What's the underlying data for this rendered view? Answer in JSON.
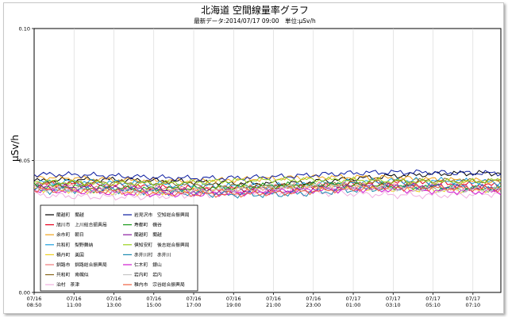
{
  "chart_data": {
    "type": "line",
    "title": "北海道 空間線量率グラフ",
    "subtitle_text": "最新データ:2014/07/17 09:00　単位:μSv/h",
    "ylabel": "μSv/h",
    "ylim": [
      0.0,
      0.1
    ],
    "yticks": [
      "0.00",
      "0.05",
      "0.10"
    ],
    "x_tick_labels": [
      {
        "date": "07/16",
        "time": "08:50"
      },
      {
        "date": "07/16",
        "time": "11:00"
      },
      {
        "date": "07/16",
        "time": "13:00"
      },
      {
        "date": "07/16",
        "time": "15:00"
      },
      {
        "date": "07/16",
        "time": "17:00"
      },
      {
        "date": "07/16",
        "time": "19:00"
      },
      {
        "date": "07/16",
        "time": "21:00"
      },
      {
        "date": "07/16",
        "time": "23:00"
      },
      {
        "date": "07/17",
        "time": "01:00"
      },
      {
        "date": "07/17",
        "time": "03:10"
      },
      {
        "date": "07/17",
        "time": "05:10"
      },
      {
        "date": "07/17",
        "time": "07:10"
      }
    ],
    "grid": "vertical",
    "legend_position": "bottom-left",
    "series": [
      {
        "name": "蘭越町　蘭越",
        "color": "#000000",
        "base": 0.042,
        "amp": 0.0012,
        "trend": 0.0035,
        "phase": 0.3
      },
      {
        "name": "旭川市　上川総合振興局",
        "color": "#e8001c",
        "base": 0.04,
        "amp": 0.0015,
        "trend": 0.001,
        "phase": 1.1
      },
      {
        "name": "余市町　朝日",
        "color": "#f2a31a",
        "base": 0.043,
        "amp": 0.0012,
        "trend": 0.0,
        "phase": 2.0
      },
      {
        "name": "共和町　梨野舞納",
        "color": "#1aa0e0",
        "base": 0.041,
        "amp": 0.0014,
        "trend": 0.001,
        "phase": 0.7
      },
      {
        "name": "積丹町　美国",
        "color": "#f0d020",
        "base": 0.039,
        "amp": 0.0015,
        "trend": 0.001,
        "phase": 2.6
      },
      {
        "name": "釧路市　釧路総合振興局",
        "color": "#f07a7a",
        "base": 0.04,
        "amp": 0.0013,
        "trend": 0.0,
        "phase": 1.6
      },
      {
        "name": "共和町　南幌似",
        "color": "#8a6a20",
        "base": 0.041,
        "amp": 0.0012,
        "trend": 0.001,
        "phase": 0.2
      },
      {
        "name": "泊村　茶津",
        "color": "#f0b0e0",
        "base": 0.037,
        "amp": 0.0014,
        "trend": 0.001,
        "phase": 3.1
      },
      {
        "name": "岩見沢市　空知総合振興局",
        "color": "#0a1aa0",
        "base": 0.044,
        "amp": 0.0012,
        "trend": 0.002,
        "phase": 1.4
      },
      {
        "name": "寿都町　磯谷",
        "color": "#1a9a1a",
        "base": 0.04,
        "amp": 0.0013,
        "trend": 0.0,
        "phase": 2.3
      },
      {
        "name": "蘭越町　蘭越",
        "color": "#8a1aa0",
        "base": 0.039,
        "amp": 0.0014,
        "trend": 0.001,
        "phase": 0.9
      },
      {
        "name": "倶知安町　後志総合振興局",
        "color": "#9ad01a",
        "base": 0.042,
        "amp": 0.0012,
        "trend": 0.001,
        "phase": 2.9
      },
      {
        "name": "赤井川村　赤井川",
        "color": "#1a8ab0",
        "base": 0.038,
        "amp": 0.0015,
        "trend": 0.002,
        "phase": 0.5
      },
      {
        "name": "仁木町　銀山",
        "color": "#d01ad0",
        "base": 0.038,
        "amp": 0.0013,
        "trend": 0.001,
        "phase": 1.9
      },
      {
        "name": "岩内町　岩内",
        "color": "#c8c8c8",
        "base": 0.039,
        "amp": 0.0014,
        "trend": 0.001,
        "phase": 2.5
      },
      {
        "name": "稚内市　宗谷総合振興局",
        "color": "#f06040",
        "base": 0.038,
        "amp": 0.0013,
        "trend": 0.002,
        "phase": 1.2
      }
    ]
  }
}
